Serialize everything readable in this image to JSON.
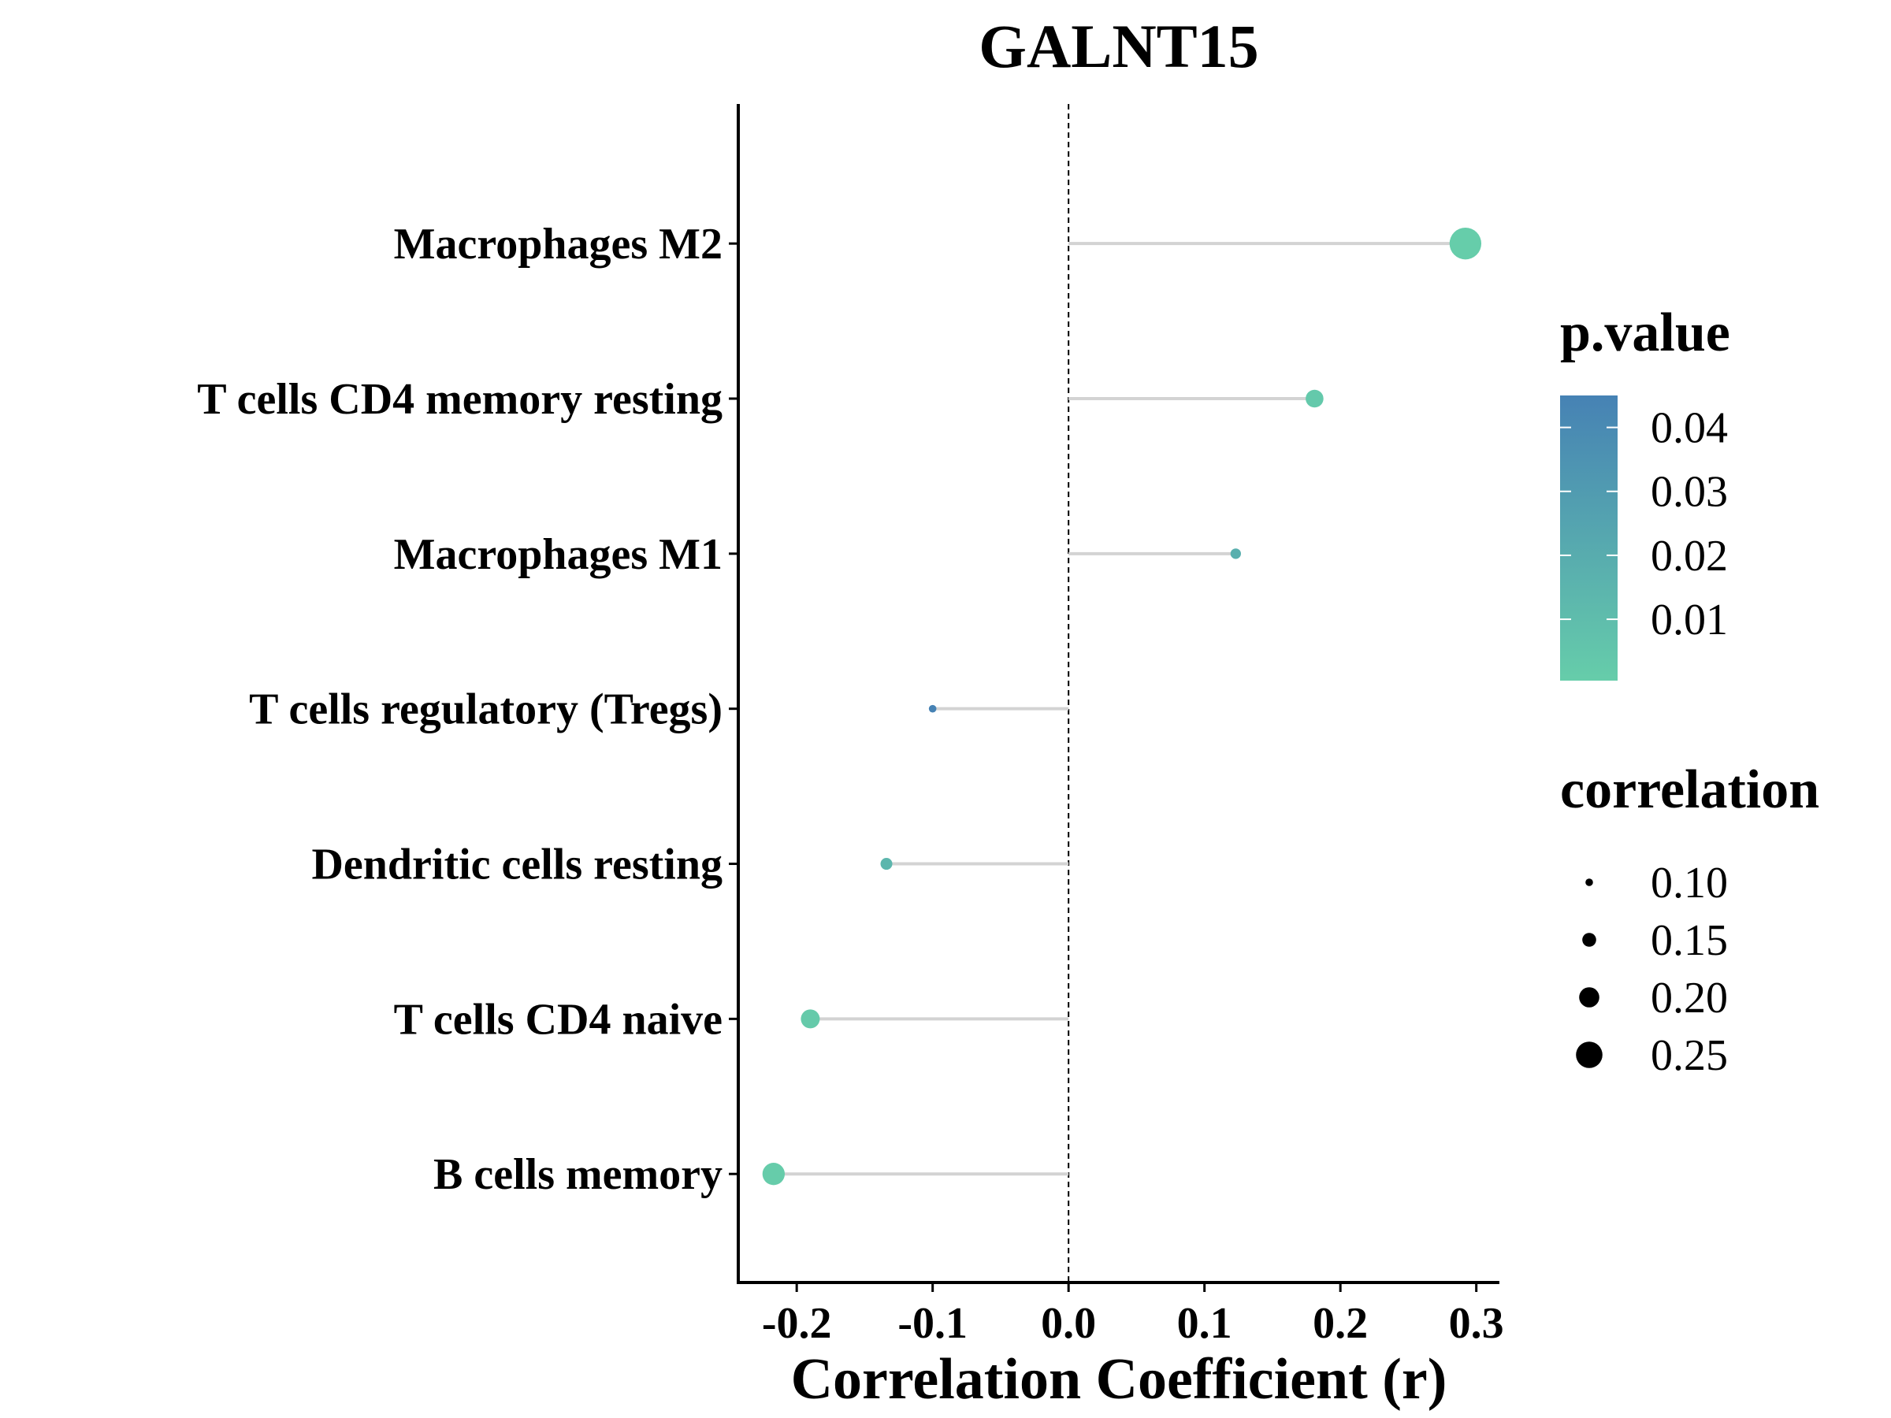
{
  "chart_data": {
    "type": "scatter",
    "title": "GALNT15",
    "xlabel": "Correlation Coefficient (r)",
    "ylabel": "",
    "xlim": [
      -0.243,
      0.317
    ],
    "xticks": [
      -0.2,
      -0.1,
      0.0,
      0.1,
      0.2,
      0.3
    ],
    "xtick_labels": [
      "-0.2",
      "-0.1",
      "0.0",
      "0.1",
      "0.2",
      "0.3"
    ],
    "reference_line": {
      "x": 0.0,
      "style": "dashed"
    },
    "categories": [
      "Macrophages M2",
      "T cells CD4 memory resting",
      "Macrophages M1",
      "T cells regulatory (Tregs)",
      "Dendritic cells resting",
      "T cells CD4 naive",
      "B cells memory"
    ],
    "points": [
      {
        "label": "Macrophages M2",
        "r": 0.292,
        "p_value": 0.0004
      },
      {
        "label": "T cells CD4 memory resting",
        "r": 0.181,
        "p_value": 0.003
      },
      {
        "label": "Macrophages M1",
        "r": 0.123,
        "p_value": 0.018
      },
      {
        "label": "T cells regulatory (Tregs)",
        "r": -0.1,
        "p_value": 0.045
      },
      {
        "label": "Dendritic cells resting",
        "r": -0.134,
        "p_value": 0.014
      },
      {
        "label": "T cells CD4 naive",
        "r": -0.19,
        "p_value": 0.002
      },
      {
        "label": "B cells memory",
        "r": -0.217,
        "p_value": 0.001
      }
    ],
    "color_legend": {
      "title": "p.value",
      "labels": [
        "0.04",
        "0.03",
        "0.02",
        "0.01"
      ],
      "values": [
        0.04,
        0.03,
        0.02,
        0.01
      ],
      "range": [
        0.0004,
        0.045
      ],
      "low_color": "#66cdaa",
      "high_color": "#4682b4"
    },
    "size_legend": {
      "title": "correlation",
      "labels": [
        "0.10",
        "0.15",
        "0.20",
        "0.25"
      ],
      "values": [
        0.1,
        0.15,
        0.2,
        0.25
      ]
    },
    "grid": false,
    "legend_position": "right"
  }
}
